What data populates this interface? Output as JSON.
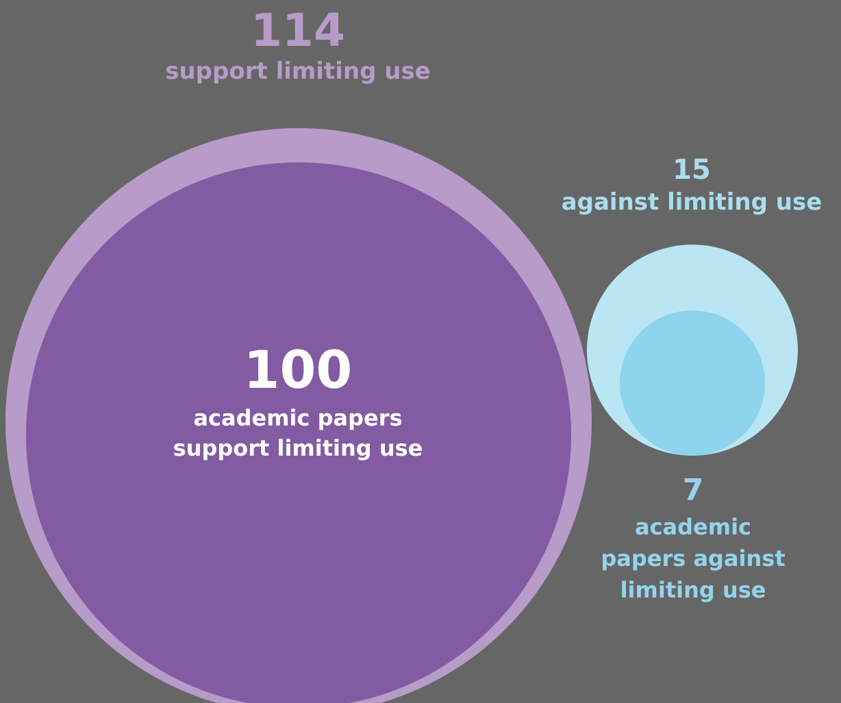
{
  "colors": {
    "background": "#666666",
    "support_outer": "#b79bc9",
    "support_inner": "#825ba3",
    "against_outer": "#bae6f4",
    "against_inner": "#8dd4ec",
    "support_outer_label": "#b79bc9",
    "against_outer_label": "#a9def0",
    "against_inner_label": "#93d4ec",
    "support_inner_label": "#ffffff"
  },
  "chart_data": {
    "type": "bubble",
    "title": "",
    "bubbles": [
      {
        "id": "support_total",
        "value": 114,
        "label": "support limiting use"
      },
      {
        "id": "support_papers",
        "value": 100,
        "label": "academic papers support limiting use",
        "nested_in": "support_total"
      },
      {
        "id": "against_total",
        "value": 15,
        "label": "against limiting use"
      },
      {
        "id": "against_papers",
        "value": 7,
        "label": "academic papers against limiting use",
        "nested_in": "against_total"
      }
    ]
  },
  "labels": {
    "support_total": {
      "number": "114",
      "text": "support limiting use"
    },
    "against_total": {
      "number": "15",
      "text": "against limiting use"
    },
    "support_papers": {
      "number": "100",
      "line1": "academic papers",
      "line2": "support limiting use"
    },
    "against_papers": {
      "number": "7",
      "line1": "academic",
      "line2": "papers against",
      "line3": "limiting use"
    }
  }
}
